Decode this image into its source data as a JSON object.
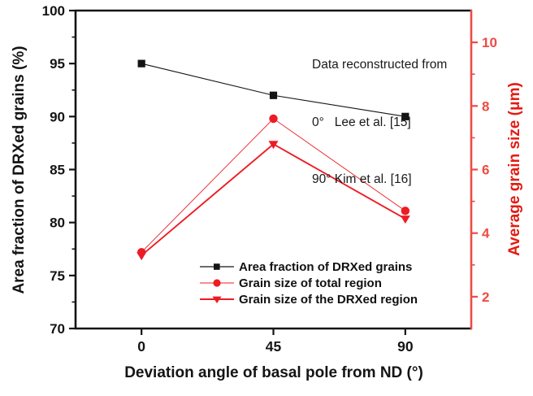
{
  "annotation": {
    "line1": "Data reconstructed from",
    "line2": "0°   Lee et al. [15]",
    "line3": "90° Kim et al. [16]"
  },
  "legend": {
    "items": [
      {
        "label": "Area fraction of DRXed grains",
        "marker": "square",
        "color": "#141414",
        "line_width": 1.2
      },
      {
        "label": "Grain size of total region",
        "marker": "circle",
        "color": "#ed1c24",
        "line_width": 1.0
      },
      {
        "label": "Grain size of the DRXed region",
        "marker": "triangle-down",
        "color": "#ed1c24",
        "line_width": 2.0
      }
    ]
  },
  "chart_data": {
    "type": "line",
    "x": [
      0,
      45,
      90
    ],
    "x_ticks": [
      0,
      45,
      90
    ],
    "xlabel": "Deviation angle of basal pole from ND (°)",
    "xlim": [
      -22.5,
      112.5
    ],
    "grid": false,
    "legend_position": "inside-bottom-center",
    "left_axis": {
      "label": "Area fraction of DRXed grains (%)",
      "lim": [
        70,
        100
      ],
      "ticks": [
        70,
        75,
        80,
        85,
        90,
        95,
        100
      ],
      "minor_ticks": [
        72.5,
        77.5,
        82.5,
        87.5,
        92.5,
        97.5
      ],
      "color": "#141414"
    },
    "right_axis": {
      "label": "Average grain size (μm)",
      "lim": [
        1,
        11
      ],
      "ticks": [
        2,
        4,
        6,
        8,
        10
      ],
      "minor_ticks": [
        3,
        5,
        7,
        9
      ],
      "color": "#ee4b45",
      "label_color": "#e21b12"
    },
    "series": [
      {
        "name": "Area fraction of DRXed grains",
        "axis": "left",
        "marker": "square",
        "color": "#141414",
        "line_width": 1.1,
        "values": [
          95,
          92,
          90
        ]
      },
      {
        "name": "Grain size of total region",
        "axis": "right",
        "marker": "circle",
        "color": "#ed1c24",
        "line_width": 0.9,
        "values": [
          3.4,
          7.6,
          4.7
        ]
      },
      {
        "name": "Grain size of the DRXed region",
        "axis": "right",
        "marker": "triangle-down",
        "color": "#ed1c24",
        "line_width": 1.9,
        "values": [
          3.3,
          6.8,
          4.45
        ]
      }
    ]
  }
}
